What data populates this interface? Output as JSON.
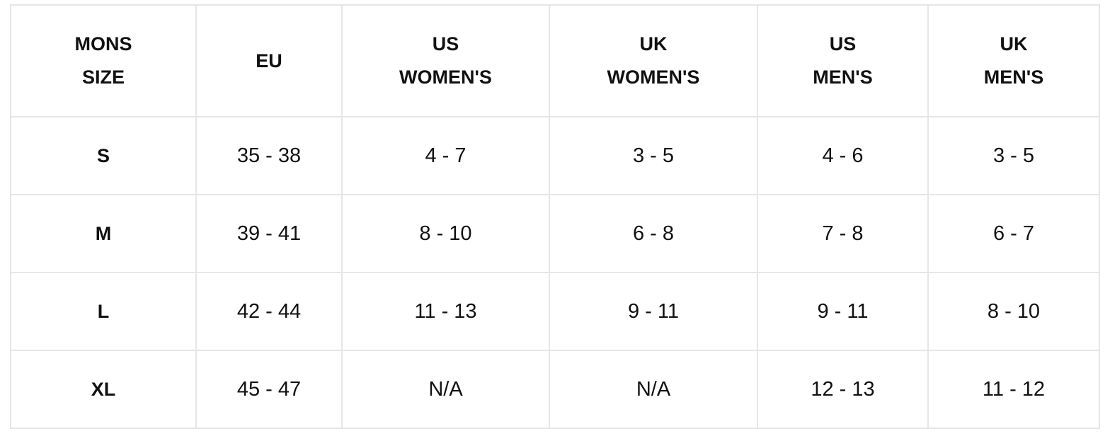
{
  "headers": [
    [
      "MONS",
      "SIZE"
    ],
    [
      "EU"
    ],
    [
      "US",
      "WOMEN'S"
    ],
    [
      "UK",
      "WOMEN'S"
    ],
    [
      "US",
      "MEN'S"
    ],
    [
      "UK",
      "MEN'S"
    ]
  ],
  "rows": [
    [
      "S",
      "35 - 38",
      "4 - 7",
      "3 - 5",
      "4 - 6",
      "3 - 5"
    ],
    [
      "M",
      "39 - 41",
      "8 - 10",
      "6 - 8",
      "7 - 8",
      "6 - 7"
    ],
    [
      "L",
      "42 - 44",
      "11 - 13",
      "9 - 11",
      "9 - 11",
      "8 - 10"
    ],
    [
      "XL",
      "45 - 47",
      "N/A",
      "N/A",
      "12 - 13",
      "11 - 12"
    ]
  ]
}
